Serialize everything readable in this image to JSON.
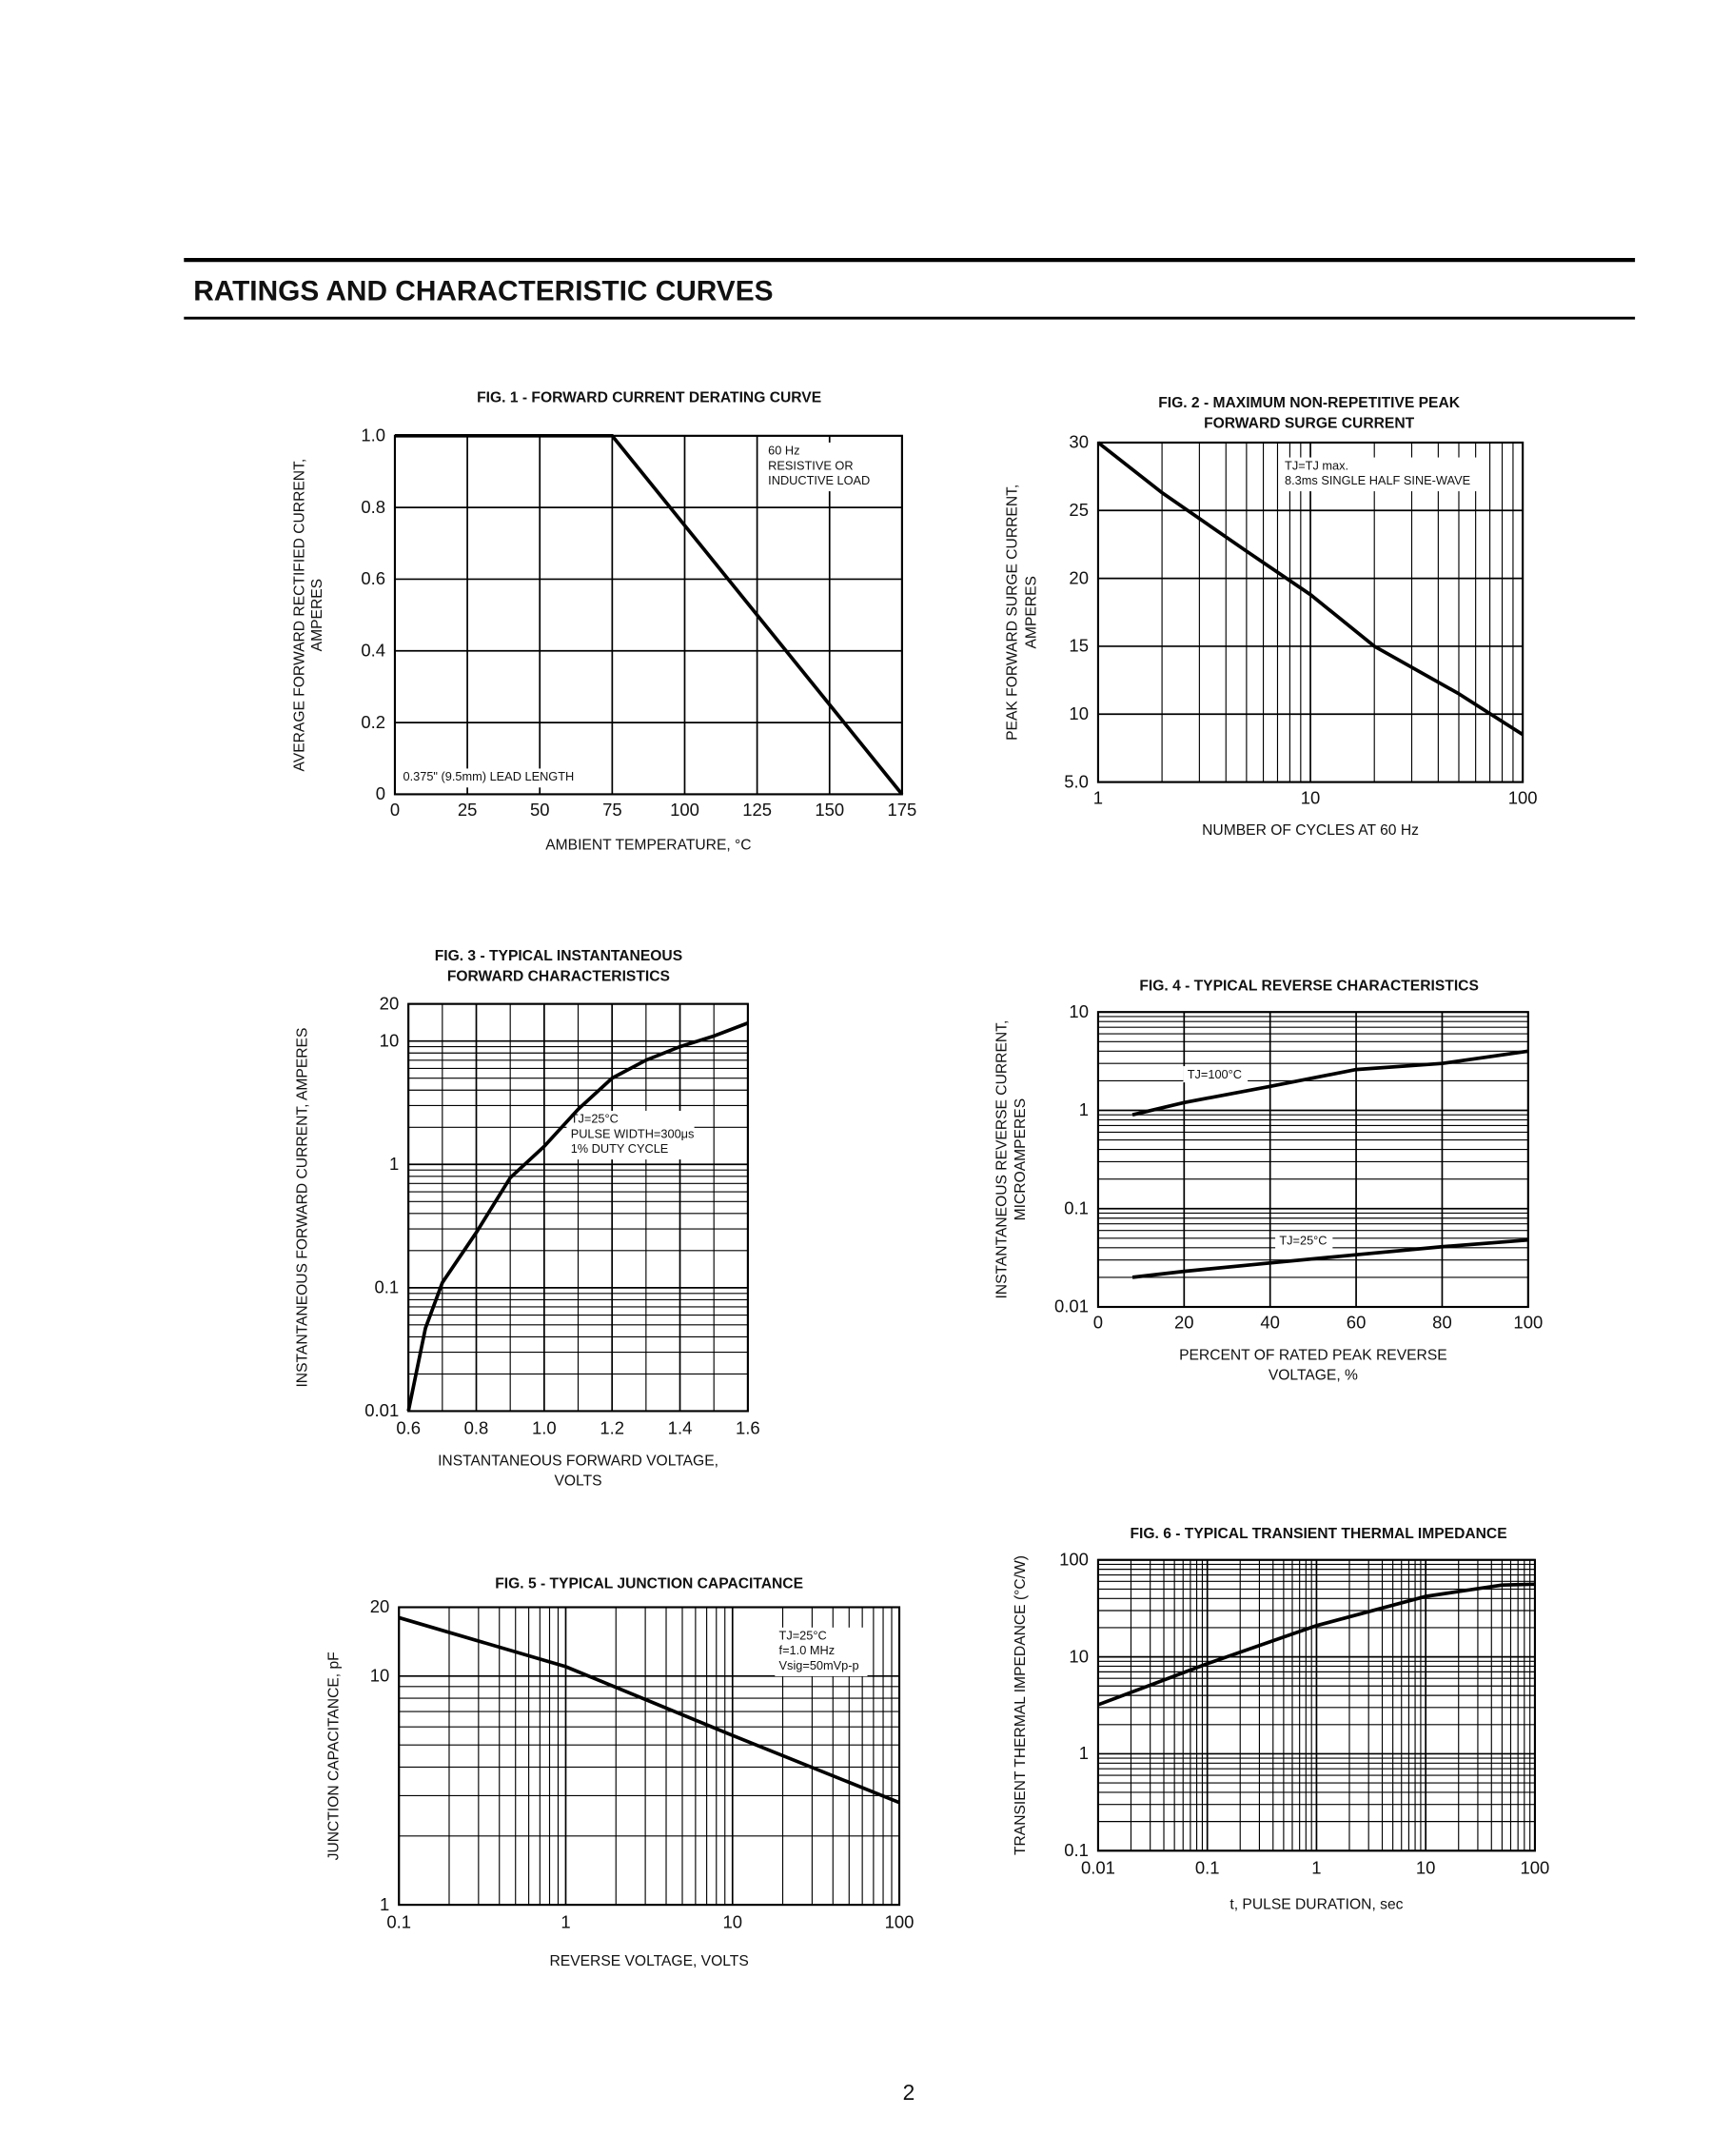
{
  "header": {
    "title": "RATINGS AND CHARACTERISTIC CURVES"
  },
  "page_number": "2",
  "chart_data": [
    {
      "type": "line",
      "title": [
        "FIG. 1 - FORWARD CURRENT DERATING CURVE"
      ],
      "xlabel": [
        "AMBIENT TEMPERATURE, °C"
      ],
      "ylabel": [
        "AVERAGE FORWARD RECTIFIED CURRENT,",
        "AMPERES"
      ],
      "x": [
        0,
        75,
        175
      ],
      "series": [
        {
          "color": "#000000",
          "values": [
            1,
            1,
            0
          ]
        }
      ],
      "xlim": [
        0,
        175
      ],
      "xticks": [
        0,
        25,
        50,
        75,
        100,
        125,
        150,
        175
      ],
      "ylim": [
        0,
        1
      ],
      "yticks": [
        0,
        0.2,
        0.4,
        0.6,
        0.8,
        {
          "value": 1,
          "label": "1.0"
        }
      ],
      "xscale": "linear",
      "yscale": "linear",
      "grid": true,
      "annotations": [
        [
          "60 Hz",
          "RESISTIVE OR",
          "INDUCTIVE LOAD"
        ],
        [
          "0.375\" (9.5mm) LEAD LENGTH"
        ]
      ]
    },
    {
      "type": "line",
      "title": [
        "FIG. 2 - MAXIMUM NON-REPETITIVE PEAK",
        "FORWARD SURGE CURRENT"
      ],
      "xlabel": [
        "NUMBER OF CYCLES AT 60 Hz"
      ],
      "ylabel": [
        "PEAK FORWARD SURGE CURRENT,",
        "AMPERES"
      ],
      "x": [
        1,
        2,
        5,
        10,
        20,
        50,
        100
      ],
      "series": [
        {
          "color": "#000000",
          "values": [
            30,
            26.3,
            22,
            18.8,
            15,
            11.5,
            8.5
          ]
        }
      ],
      "xlim": [
        1,
        100
      ],
      "xticks": [
        1,
        10,
        100
      ],
      "ylim": [
        5,
        30
      ],
      "yticks": [
        {
          "value": 5,
          "label": "5.0"
        },
        10,
        15,
        20,
        25,
        30
      ],
      "xscale": "log",
      "yscale": "linear",
      "grid": true,
      "annotations": [
        [
          "TJ=TJ max.",
          "8.3ms SINGLE HALF SINE-WAVE"
        ]
      ]
    },
    {
      "type": "line",
      "title": [
        "FIG. 3 - TYPICAL INSTANTANEOUS",
        "FORWARD CHARACTERISTICS"
      ],
      "xlabel": [
        "INSTANTANEOUS FORWARD VOLTAGE,",
        "VOLTS"
      ],
      "ylabel": [
        "INSTANTANEOUS FORWARD CURRENT, AMPERES"
      ],
      "x": [
        0.6,
        0.65,
        0.7,
        0.8,
        0.9,
        1.0,
        1.1,
        1.2,
        1.3,
        1.4,
        1.5,
        1.6
      ],
      "series": [
        {
          "color": "#000000",
          "values": [
            0.01,
            0.047,
            0.11,
            0.28,
            0.78,
            1.4,
            2.8,
            5,
            7,
            9,
            11,
            14
          ]
        }
      ],
      "xlim": [
        0.6,
        1.6
      ],
      "xticks": [
        0.6,
        0.8,
        {
          "value": 1,
          "label": "1.0"
        },
        1.2,
        1.4,
        1.6
      ],
      "ylim": [
        0.01,
        20
      ],
      "yticks": [
        0.01,
        0.1,
        1,
        10,
        20
      ],
      "xscale": "linear",
      "yscale": "log",
      "grid": true,
      "annotations": [
        [
          "TJ=25°C",
          "PULSE WIDTH=300μs",
          "1% DUTY CYCLE"
        ]
      ]
    },
    {
      "type": "line",
      "title": [
        "FIG. 4 - TYPICAL REVERSE CHARACTERISTICS"
      ],
      "xlabel": [
        "PERCENT OF RATED PEAK REVERSE",
        "VOLTAGE, %"
      ],
      "ylabel": [
        "INSTANTANEOUS REVERSE CURRENT,",
        "MICROAMPERES"
      ],
      "x": [
        8,
        20,
        40,
        60,
        80,
        100
      ],
      "series": [
        {
          "name": "TJ=100°C",
          "color": "#000000",
          "values": [
            0.9,
            1.2,
            1.75,
            2.6,
            3.0,
            4.0
          ]
        },
        {
          "name": "TJ=25°C",
          "color": "#000000",
          "values": [
            0.02,
            0.023,
            0.028,
            0.034,
            0.041,
            0.048
          ]
        }
      ],
      "xlim": [
        0,
        100
      ],
      "xticks": [
        0,
        20,
        40,
        60,
        80,
        100
      ],
      "ylim": [
        0.01,
        10
      ],
      "yticks": [
        0.01,
        0.1,
        1,
        10
      ],
      "xscale": "linear",
      "yscale": "log",
      "grid": true,
      "annotations": []
    },
    {
      "type": "line",
      "title": [
        "FIG. 5 - TYPICAL JUNCTION CAPACITANCE"
      ],
      "xlabel": [
        "REVERSE VOLTAGE, VOLTS"
      ],
      "ylabel": [
        "JUNCTION CAPACITANCE, pF"
      ],
      "x": [
        0.1,
        1,
        10,
        100
      ],
      "series": [
        {
          "color": "#000000",
          "values": [
            18,
            11,
            5.5,
            2.8
          ]
        }
      ],
      "xlim": [
        0.1,
        100
      ],
      "xticks": [
        0.1,
        1,
        10,
        100
      ],
      "ylim": [
        1,
        20
      ],
      "yticks": [
        1,
        10,
        20
      ],
      "xscale": "log",
      "yscale": "log",
      "grid": true,
      "annotations": [
        [
          "TJ=25°C",
          "f=1.0 MHz",
          "Vsig=50mVp-p"
        ]
      ]
    },
    {
      "type": "line",
      "title": [
        "FIG. 6 - TYPICAL TRANSIENT THERMAL IMPEDANCE"
      ],
      "xlabel": [
        "t, PULSE DURATION, sec"
      ],
      "ylabel": [
        "TRANSIENT THERMAL IMPEDANCE (°C/W)"
      ],
      "x": [
        0.01,
        0.1,
        1,
        10,
        50,
        100
      ],
      "series": [
        {
          "color": "#000000",
          "values": [
            3.2,
            8.5,
            21,
            42,
            55,
            56
          ]
        }
      ],
      "xlim": [
        0.01,
        100
      ],
      "xticks": [
        0.01,
        0.1,
        1,
        10,
        100
      ],
      "ylim": [
        0.1,
        100
      ],
      "yticks": [
        0.1,
        1,
        10,
        100
      ],
      "xscale": "log",
      "yscale": "log",
      "grid": true,
      "annotations": []
    }
  ]
}
